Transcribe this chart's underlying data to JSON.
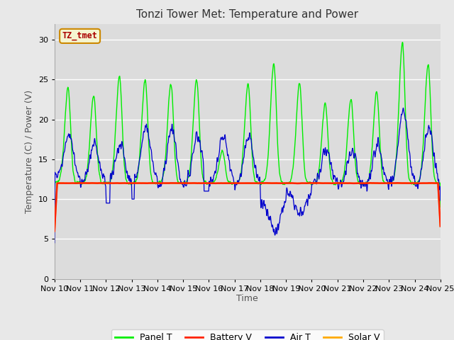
{
  "title": "Tonzi Tower Met: Temperature and Power",
  "xlabel": "Time",
  "ylabel": "Temperature (C) / Power (V)",
  "xlim_start": 10,
  "xlim_end": 25,
  "ylim": [
    0,
    32
  ],
  "yticks": [
    0,
    5,
    10,
    15,
    20,
    25,
    30
  ],
  "xtick_labels": [
    "Nov 10",
    "Nov 11",
    "Nov 12",
    "Nov 13",
    "Nov 14",
    "Nov 15",
    "Nov 16",
    "Nov 17",
    "Nov 18",
    "Nov 19",
    "Nov 20",
    "Nov 21",
    "Nov 22",
    "Nov 23",
    "Nov 24",
    "Nov 25"
  ],
  "panel_color": "#00ee00",
  "battery_color": "#ff2200",
  "air_color": "#0000cc",
  "solar_color": "#ffaa00",
  "fig_bg_color": "#e8e8e8",
  "plot_bg_color": "#dcdcdc",
  "legend_bg": "#ffffff",
  "legend_label_panel": "Panel T",
  "legend_label_battery": "Battery V",
  "legend_label_air": "Air T",
  "legend_label_solar": "Solar V",
  "watermark_text": "TZ_tmet",
  "watermark_bg": "#f5f5d0",
  "watermark_border": "#cc8800",
  "watermark_color": "#aa0000",
  "title_fontsize": 11,
  "axis_label_fontsize": 9,
  "tick_fontsize": 8,
  "legend_fontsize": 9
}
